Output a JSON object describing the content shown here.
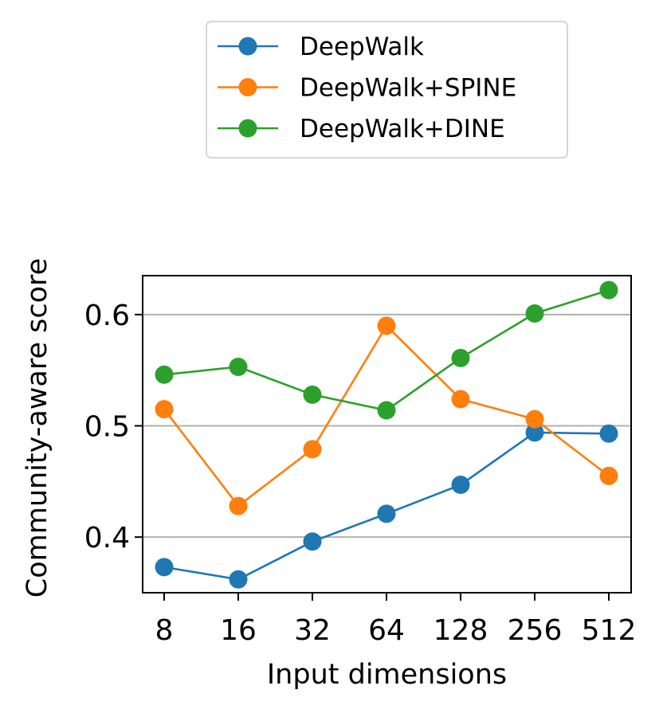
{
  "chart_data": {
    "type": "line",
    "title": "",
    "xlabel": "Input dimensions",
    "ylabel": "Community-aware score",
    "categories": [
      "8",
      "16",
      "32",
      "64",
      "128",
      "256",
      "512"
    ],
    "ylim": [
      0.35,
      0.635
    ],
    "yticks": [
      0.4,
      0.5,
      0.6
    ],
    "ytick_labels": [
      "0.4",
      "0.5",
      "0.6"
    ],
    "grid": "horizontal",
    "legend_position": "top-center",
    "series": [
      {
        "name": "DeepWalk",
        "color": "#1f77b4",
        "values": [
          0.373,
          0.362,
          0.396,
          0.421,
          0.447,
          0.494,
          0.493
        ]
      },
      {
        "name": "DeepWalk+SPINE",
        "color": "#ff7f0e",
        "values": [
          0.515,
          0.428,
          0.479,
          0.59,
          0.524,
          0.506,
          0.455
        ]
      },
      {
        "name": "DeepWalk+DINE",
        "color": "#2ca02c",
        "values": [
          0.546,
          0.553,
          0.528,
          0.514,
          0.561,
          0.601,
          0.622
        ]
      }
    ]
  }
}
